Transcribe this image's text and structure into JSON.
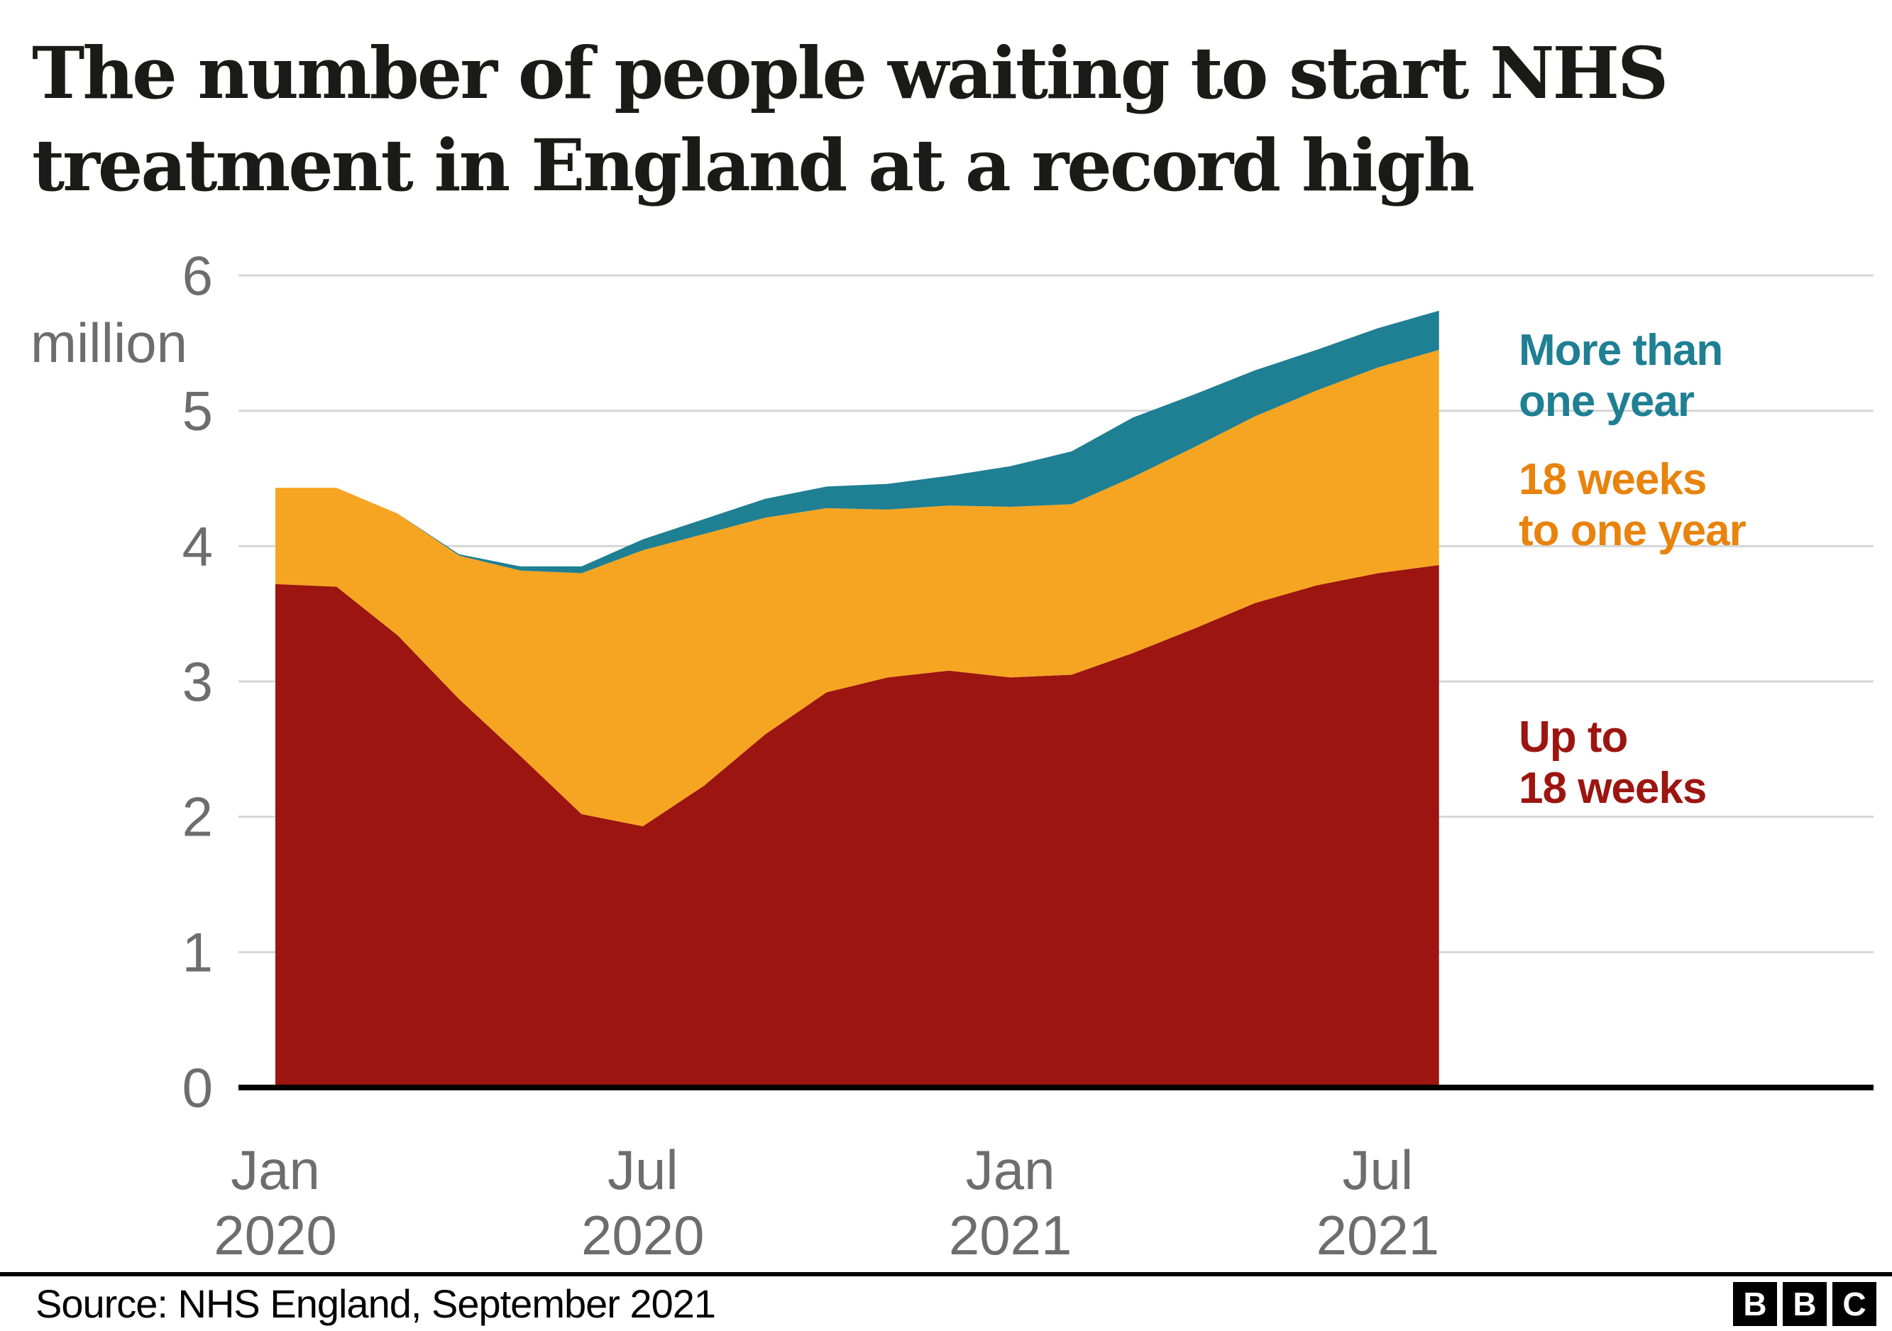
{
  "title": {
    "line1": "The number of people waiting to start NHS",
    "line2": "treatment in England at a record high"
  },
  "legend": {
    "more_than_one_year": {
      "line1": "More than",
      "line2": "one year"
    },
    "weeks18_to_one_year": {
      "line1": "18 weeks",
      "line2": "to one year"
    },
    "up_to_18_weeks": {
      "line1": "Up to",
      "line2": "18 weeks"
    }
  },
  "colors": {
    "title": "#1a1a18",
    "tick": "#6d6d70",
    "grid": "#d6d6d6",
    "axis": "#000000",
    "red": "#9c1510",
    "orange": "#f6a522",
    "orange_text": "#e8830d",
    "teal": "#1f7f93"
  },
  "chart_data": {
    "type": "area",
    "stacked": true,
    "title": "The number of people waiting to start NHS treatment in England at a record high",
    "unit": "million",
    "ylabel": "million",
    "ylim": [
      0,
      6
    ],
    "yticks": [
      0,
      1,
      2,
      3,
      4,
      5,
      6
    ],
    "grid": true,
    "legend_position": "right",
    "categories": [
      "Jan 2020",
      "Feb 2020",
      "Mar 2020",
      "Apr 2020",
      "May 2020",
      "Jun 2020",
      "Jul 2020",
      "Aug 2020",
      "Sep 2020",
      "Oct 2020",
      "Nov 2020",
      "Dec 2020",
      "Jan 2021",
      "Feb 2021",
      "Mar 2021",
      "Apr 2021",
      "May 2021",
      "Jun 2021",
      "Jul 2021",
      "Aug 2021"
    ],
    "series": [
      {
        "name": "Up to 18 weeks",
        "color": "#9c1510",
        "values": [
          3.72,
          3.7,
          3.34,
          2.87,
          2.45,
          2.02,
          1.93,
          2.23,
          2.61,
          2.92,
          3.03,
          3.08,
          3.03,
          3.05,
          3.21,
          3.39,
          3.58,
          3.71,
          3.8,
          3.86
        ]
      },
      {
        "name": "18 weeks to one year",
        "color": "#f6a522",
        "values": [
          0.71,
          0.73,
          0.9,
          1.06,
          1.37,
          1.78,
          2.04,
          1.86,
          1.6,
          1.36,
          1.24,
          1.22,
          1.26,
          1.26,
          1.3,
          1.34,
          1.38,
          1.44,
          1.52,
          1.59
        ]
      },
      {
        "name": "More than one year",
        "color": "#1f7f93",
        "values": [
          0.0,
          0.0,
          0.0,
          0.01,
          0.03,
          0.05,
          0.08,
          0.11,
          0.14,
          0.16,
          0.19,
          0.22,
          0.3,
          0.39,
          0.44,
          0.39,
          0.34,
          0.3,
          0.29,
          0.29
        ]
      }
    ],
    "xtick_labels": [
      {
        "index": 0,
        "line1": "Jan",
        "line2": "2020"
      },
      {
        "index": 6,
        "line1": "Jul",
        "line2": "2020"
      },
      {
        "index": 12,
        "line1": "Jan",
        "line2": "2021"
      },
      {
        "index": 18,
        "line1": "Jul",
        "line2": "2021"
      }
    ]
  },
  "footer": {
    "source": "Source: NHS England, September 2021",
    "logo": [
      "B",
      "B",
      "C"
    ]
  }
}
